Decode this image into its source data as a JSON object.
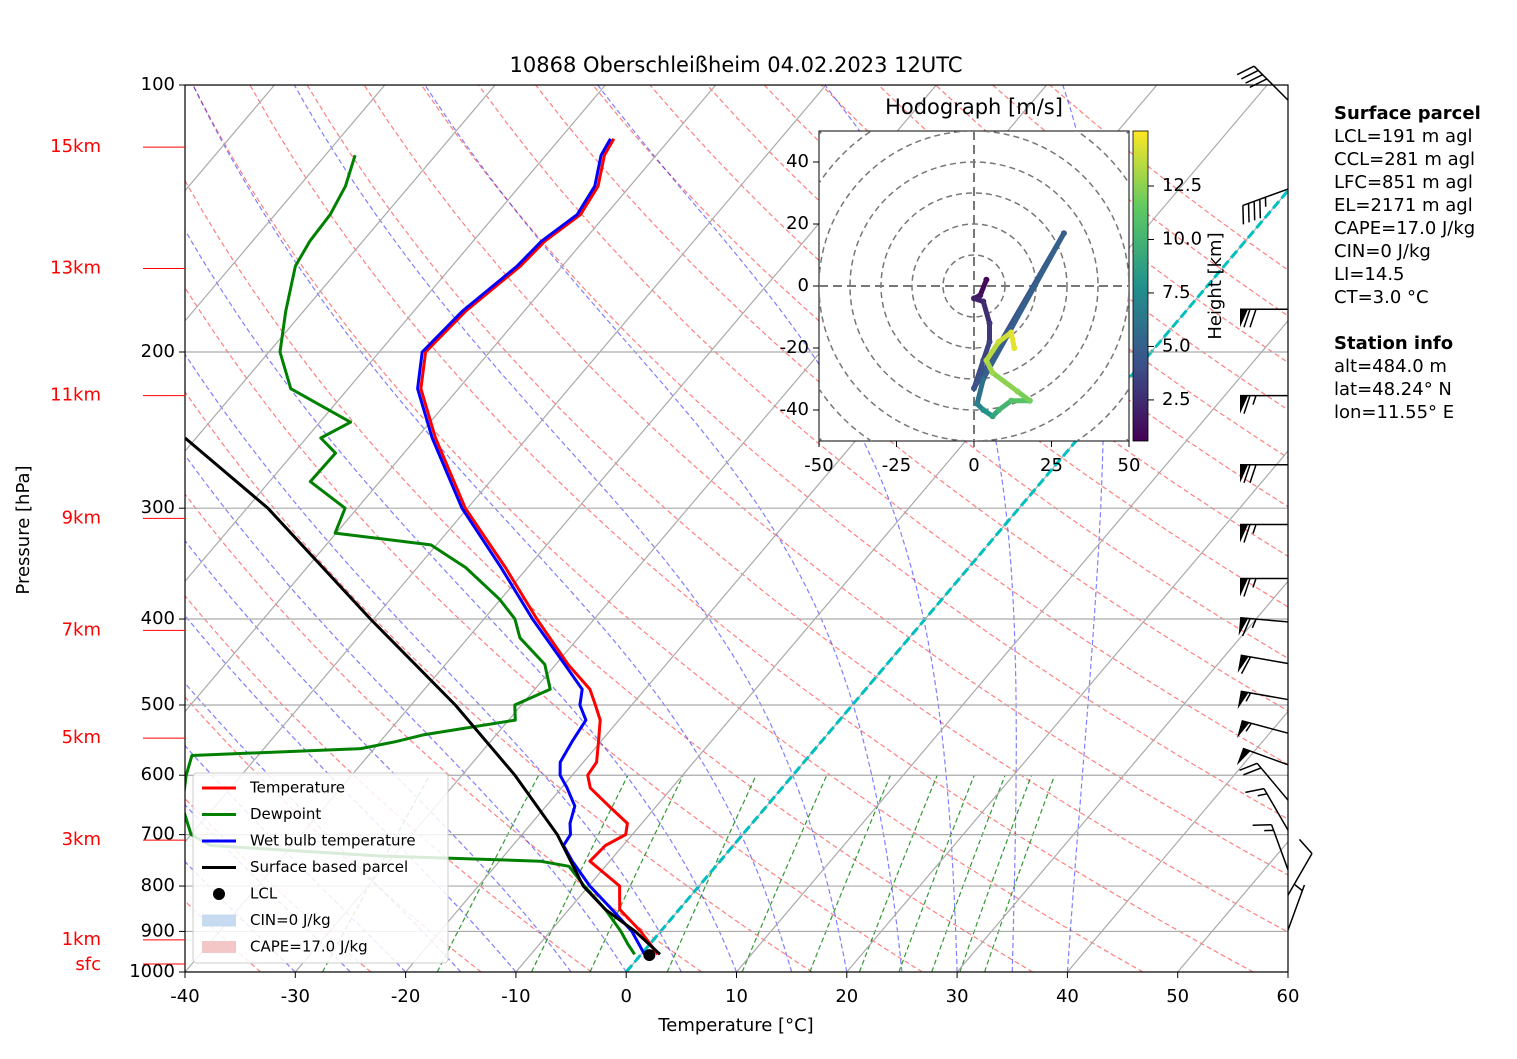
{
  "chart_data": [
    {
      "type": "skewt",
      "title": "10868 Oberschleißheim 04.02.2023 12UTC",
      "xlabel": "Temperature [°C]",
      "ylabel": "Pressure [hPa]",
      "xlim": [
        -40,
        60
      ],
      "ylim": [
        1000,
        100
      ],
      "log_y": true,
      "grid": true,
      "xticks": [
        -40,
        -30,
        -20,
        -10,
        0,
        10,
        20,
        30,
        40,
        50,
        60
      ],
      "yticks": [
        100,
        200,
        300,
        400,
        500,
        600,
        700,
        800,
        900,
        1000
      ],
      "zero_isotherm_color": "#00bfbf",
      "height_labels": [
        {
          "value": 117.5,
          "label": "15km"
        },
        {
          "value": 161,
          "label": "13km"
        },
        {
          "value": 224,
          "label": "11km"
        },
        {
          "value": 308,
          "label": "9km"
        },
        {
          "value": 412,
          "label": "7km"
        },
        {
          "value": 545,
          "label": "5km"
        },
        {
          "value": 710,
          "label": "3km"
        },
        {
          "value": 920,
          "label": "1km"
        },
        {
          "value": 979.5,
          "label": "sfc"
        }
      ],
      "series": [
        {
          "name": "Temperature",
          "color": "#ff0000",
          "pressure": [
            955,
            900,
            850,
            800,
            750,
            720,
            700,
            680,
            650,
            620,
            600,
            580,
            550,
            520,
            500,
            480,
            450,
            400,
            350,
            300,
            250,
            220,
            200,
            180,
            160,
            150,
            140,
            130,
            120,
            115
          ],
          "values": [
            1.5,
            -1.8,
            -5.4,
            -7.2,
            -11.8,
            -11.6,
            -10.6,
            -11.3,
            -14.3,
            -17.4,
            -18.6,
            -18.8,
            -20.2,
            -21.7,
            -23.3,
            -25,
            -28.9,
            -35.2,
            -42,
            -50.2,
            -58.3,
            -63.4,
            -65.8,
            -65.3,
            -63.8,
            -63.5,
            -62.3,
            -62.9,
            -64.7,
            -65.1
          ]
        },
        {
          "name": "Dewpoint",
          "color": "#008000",
          "pressure": [
            955,
            930,
            900,
            850,
            800,
            760,
            750,
            740,
            720,
            700,
            650,
            600,
            570,
            560,
            550,
            540,
            520,
            500,
            480,
            450,
            420,
            400,
            380,
            350,
            330,
            320,
            300,
            280,
            260,
            250,
            240,
            220,
            200,
            180,
            160,
            150,
            140,
            130,
            120
          ],
          "values": [
            -0.6,
            -2,
            -3.6,
            -6.7,
            -10.4,
            -13.3,
            -16.3,
            -31.2,
            -47.4,
            -50,
            -53,
            -55,
            -56,
            -41.2,
            -38.6,
            -36.5,
            -29.4,
            -30.6,
            -28.6,
            -31,
            -35.3,
            -37.2,
            -40.1,
            -45.6,
            -50.5,
            -60.1,
            -61.1,
            -66.3,
            -66.2,
            -68.7,
            -67.2,
            -75.2,
            -79,
            -81.6,
            -84.2,
            -84.8,
            -85,
            -85.8,
            -87.3
          ]
        },
        {
          "name": "Wet bulb temperature",
          "color": "#0000ff",
          "pressure": [
            955,
            900,
            850,
            800,
            750,
            720,
            700,
            680,
            650,
            620,
            600,
            580,
            550,
            520,
            500,
            480,
            450,
            400,
            350,
            300,
            250,
            220,
            200,
            180,
            160,
            150,
            140,
            130,
            120,
            115
          ],
          "values": [
            0.3,
            -2.6,
            -6.1,
            -9.9,
            -13.4,
            -15.4,
            -15.6,
            -16.5,
            -17.4,
            -19.5,
            -21.1,
            -22.1,
            -22.6,
            -23,
            -24.7,
            -25.7,
            -29.2,
            -35.6,
            -42.4,
            -50.5,
            -58.6,
            -63.7,
            -66.1,
            -65.6,
            -64.1,
            -63.8,
            -62.6,
            -63.2,
            -65,
            -65.4
          ]
        },
        {
          "name": "Surface based parcel",
          "color": "#000000",
          "pressure": [
            955,
            900,
            850,
            800,
            700,
            600,
            500,
            400,
            300,
            250
          ],
          "values": [
            1.7,
            -2.3,
            -6.7,
            -10.5,
            -16.8,
            -25.2,
            -36,
            -50.3,
            -68.1,
            -81
          ]
        }
      ],
      "lcl": {
        "name": "LCL",
        "pressure": 957,
        "value": 0.8,
        "color": "#000000"
      },
      "shading": [
        {
          "name": "CIN=0 J/kg",
          "color": "#c6dbef"
        },
        {
          "name": "CAPE=17.0 J/kg",
          "color": "#f4c7c7"
        }
      ],
      "wind_barbs": {
        "pressure": [
          104,
          131,
          179,
          224,
          268,
          313,
          360,
          403,
          449,
          493,
          538,
          584,
          640,
          692,
          767,
          819,
          897
        ],
        "direction": [
          315,
          250,
          270,
          270,
          270,
          270,
          270,
          275,
          280,
          280,
          285,
          290,
          320,
          330,
          340,
          30,
          20
        ],
        "speed": [
          40,
          45,
          70,
          65,
          70,
          65,
          65,
          65,
          60,
          55,
          55,
          50,
          20,
          15,
          15,
          10,
          5
        ]
      }
    },
    {
      "type": "hodograph",
      "title": "Hodograph [m/s]",
      "xlim": [
        -50,
        50
      ],
      "ylim": [
        -50,
        50
      ],
      "xticks": [
        -50,
        -25,
        0,
        25,
        50
      ],
      "yticks": [
        -40,
        -20,
        0,
        20,
        40
      ],
      "height": [
        0.5,
        1,
        1.5,
        2,
        2.5,
        3,
        3.5,
        4,
        4.2,
        5,
        6,
        7,
        8,
        9,
        10,
        11,
        12,
        12.5,
        13,
        13.5,
        14,
        14.5
      ],
      "u": [
        4,
        2,
        0,
        3,
        5,
        5,
        3,
        0,
        29,
        3,
        1,
        3,
        6,
        8,
        12,
        18,
        14,
        6,
        4,
        8,
        12,
        13
      ],
      "v": [
        2,
        -3,
        -4,
        -5,
        -12,
        -18,
        -24,
        -33,
        17,
        -30,
        -38,
        -40,
        -42,
        -40,
        -37,
        -37,
        -34,
        -28,
        -24,
        -18,
        -15,
        -20
      ],
      "colormap": "viridis",
      "colorbar_label": "Height [km]",
      "clim": [
        0.58,
        15.07
      ],
      "colorbar_ticks": [
        2.5,
        {
          "value": 5,
          "label": "5.0"
        },
        7.5,
        {
          "value": 10,
          "label": "10.0"
        },
        12.5
      ]
    }
  ],
  "info": [
    {
      "heading": "Surface parcel",
      "lines": [
        "LCL=191 m agl",
        "CCL=281 m agl",
        "LFC=851 m agl",
        "EL=2171 m agl",
        "CAPE=17.0 J/kg",
        "CIN=0 J/kg",
        "LI=14.5",
        "CT=3.0 °C"
      ]
    },
    {
      "heading": "Station info",
      "lines": [
        "alt=484.0 m",
        "lat=48.24° N",
        "lon=11.55° E"
      ]
    }
  ]
}
